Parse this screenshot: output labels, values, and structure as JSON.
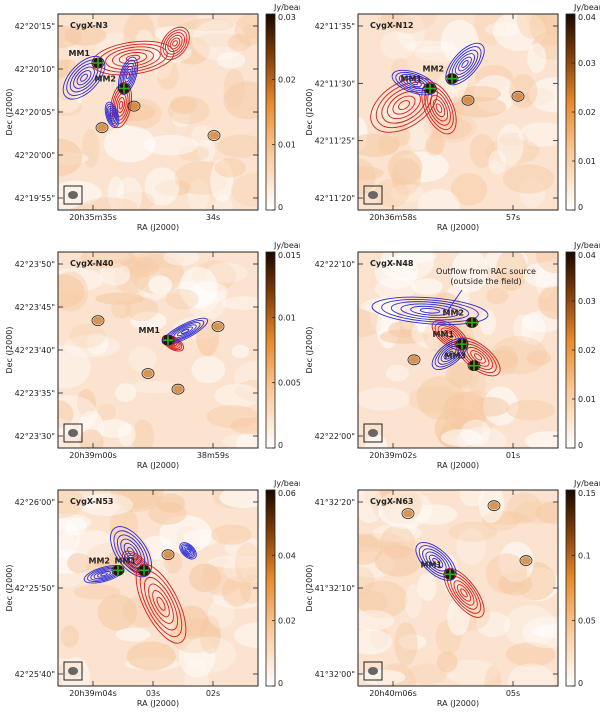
{
  "colorbar_unit": "Jy/beam",
  "colors": {
    "red_lobe": "#d21e1e",
    "blue_lobe": "#2c2cd6",
    "continuum_contour": "#222222",
    "marker_green": "#24b024",
    "map_light": "#fbe3cf",
    "map_dark": "#1a0800"
  },
  "chart_data": [
    {
      "type": "heatmap",
      "title": "CygX-N3",
      "xlabel": "RA (J2000)",
      "ylabel": "Dec (J2000)",
      "xticks": [
        "20h35m35s",
        "34s"
      ],
      "yticks": [
        "42°20'15\"",
        "42°20'10\"",
        "42°20'05\"",
        "42°20'00\"",
        "42°19'55\""
      ],
      "colorbar_ticks": [
        "0.03",
        "0.02",
        "0.01",
        "0"
      ],
      "colorbar_range": [
        0,
        0.03
      ],
      "sources": [
        {
          "name": "MM1",
          "x": 0.2,
          "y": 0.25
        },
        {
          "name": "MM2",
          "x": 0.33,
          "y": 0.38
        }
      ],
      "annotations": []
    },
    {
      "type": "heatmap",
      "title": "CygX-N12",
      "xlabel": "RA (J2000)",
      "ylabel": "Dec (J2000)",
      "xticks": [
        "20h36m58s",
        "57s"
      ],
      "yticks": [
        "42°11'35\"",
        "42°11'30\"",
        "42°11'25\"",
        "42°11'20\""
      ],
      "colorbar_ticks": [
        "0.04",
        "0.03",
        "0.02",
        "0.01",
        "0"
      ],
      "colorbar_range": [
        0,
        0.04
      ],
      "sources": [
        {
          "name": "MM1",
          "x": 0.36,
          "y": 0.38
        },
        {
          "name": "MM2",
          "x": 0.47,
          "y": 0.33
        }
      ],
      "annotations": []
    },
    {
      "type": "heatmap",
      "title": "CygX-N40",
      "xlabel": "RA (J2000)",
      "ylabel": "Dec (J2000)",
      "xticks": [
        "20h39m00s",
        "38m59s"
      ],
      "yticks": [
        "42°23'50\"",
        "42°23'45\"",
        "42°23'40\"",
        "42°23'35\"",
        "42°23'30\""
      ],
      "colorbar_ticks": [
        "0.015",
        "0.01",
        "0.005",
        "0"
      ],
      "colorbar_range": [
        0,
        0.015
      ],
      "sources": [
        {
          "name": "MM1",
          "x": 0.55,
          "y": 0.45
        }
      ],
      "annotations": []
    },
    {
      "type": "heatmap",
      "title": "CygX-N48",
      "xlabel": "RA (J2000)",
      "ylabel": "Dec (J2000)",
      "xticks": [
        "20h39m02s",
        "01s"
      ],
      "yticks": [
        "42°22'10\"",
        "42°22'00\""
      ],
      "colorbar_ticks": [
        "0.04",
        "0.03",
        "0.02",
        "0.01",
        "0"
      ],
      "colorbar_range": [
        0,
        0.04
      ],
      "sources": [
        {
          "name": "MM1",
          "x": 0.52,
          "y": 0.47
        },
        {
          "name": "MM2",
          "x": 0.57,
          "y": 0.36
        },
        {
          "name": "MM3",
          "x": 0.58,
          "y": 0.58
        }
      ],
      "annotations": [
        "Outflow from RAC source",
        "(outside the field)"
      ]
    },
    {
      "type": "heatmap",
      "title": "CygX-N53",
      "xlabel": "RA (J2000)",
      "ylabel": "Dec (J2000)",
      "xticks": [
        "20h39m04s",
        "03s",
        "02s"
      ],
      "yticks": [
        "42°26'00\"",
        "42°25'50\"",
        "42°25'40\""
      ],
      "colorbar_ticks": [
        "0.06",
        "0.04",
        "0.02",
        "0"
      ],
      "colorbar_range": [
        0,
        0.06
      ],
      "sources": [
        {
          "name": "MM1",
          "x": 0.43,
          "y": 0.41
        },
        {
          "name": "MM2",
          "x": 0.3,
          "y": 0.41
        }
      ],
      "annotations": []
    },
    {
      "type": "heatmap",
      "title": "CygX-N63",
      "xlabel": "RA (J2000)",
      "ylabel": "Dec (J2000)",
      "xticks": [
        "20h40m06s",
        "05s"
      ],
      "yticks": [
        "41°32'20\"",
        "41°32'10\"",
        "41°32'00\""
      ],
      "colorbar_ticks": [
        "0.15",
        "0.1",
        "0.05",
        "0"
      ],
      "colorbar_range": [
        0,
        0.15
      ],
      "sources": [
        {
          "name": "MM1",
          "x": 0.46,
          "y": 0.43
        }
      ],
      "annotations": []
    }
  ]
}
